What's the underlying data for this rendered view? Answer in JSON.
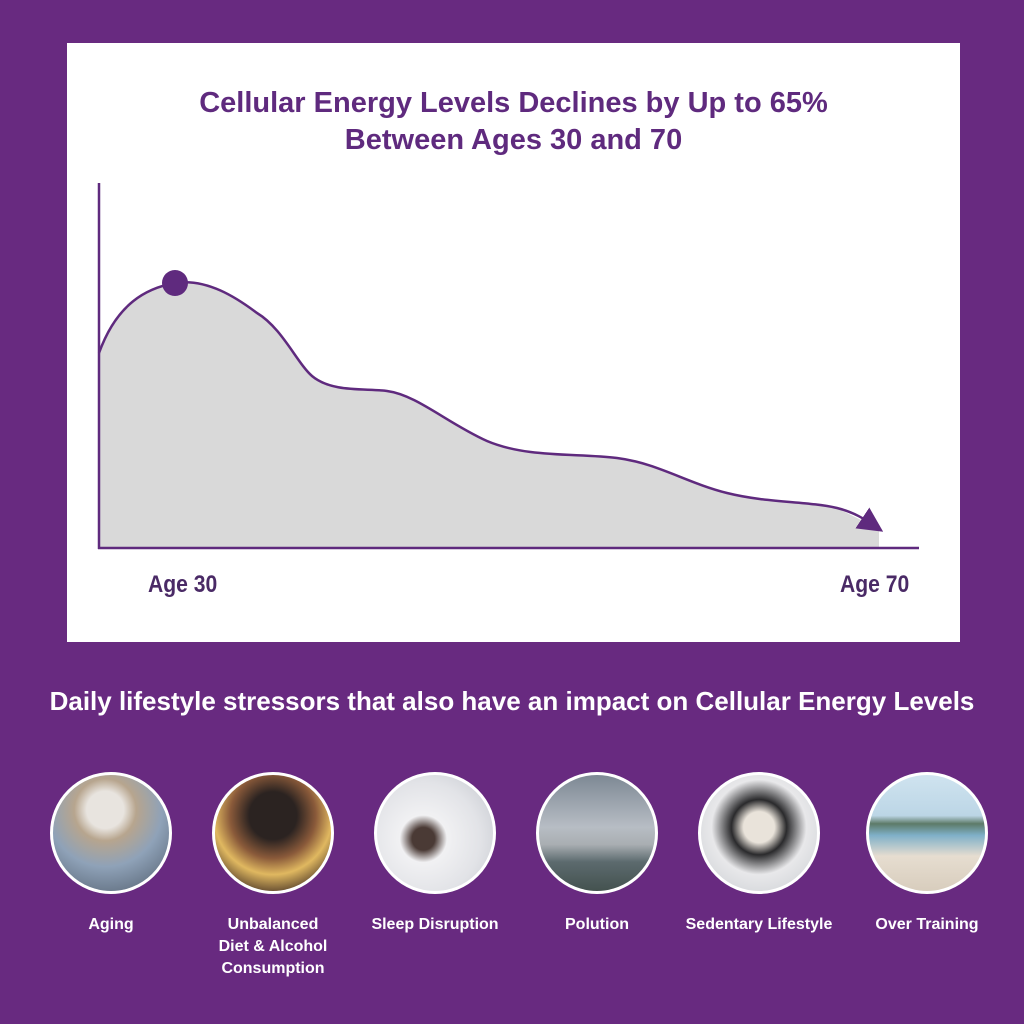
{
  "colors": {
    "background": "#682a80",
    "title": "#5f2a7e",
    "curve": "#5f2a7e",
    "fill": "#d9d9d9"
  },
  "chart": {
    "title_line1": "Cellular Energy Levels Declines by Up to 65%",
    "title_line2": "Between Ages 30 and 70",
    "x_start_label": "Age 30",
    "x_end_label": "Age 70"
  },
  "stressors": {
    "heading": "Daily lifestyle stressors that also have an impact on Cellular Energy Levels",
    "items": [
      {
        "label": "Aging",
        "photo": "older-woman-thinking"
      },
      {
        "label": "Unbalanced\nDiet & Alcohol\nConsumption",
        "photo": "friends-eating-drinking"
      },
      {
        "label": "Sleep Disruption",
        "photo": "woman-covering-head-with-pillow"
      },
      {
        "label": "Polution",
        "photo": "power-plant-cooling-towers"
      },
      {
        "label": "Sedentary Lifestyle",
        "photo": "woman-with-back-pain-at-desk"
      },
      {
        "label": "Over Training",
        "photo": "exhausted-man-on-beach"
      }
    ]
  }
}
